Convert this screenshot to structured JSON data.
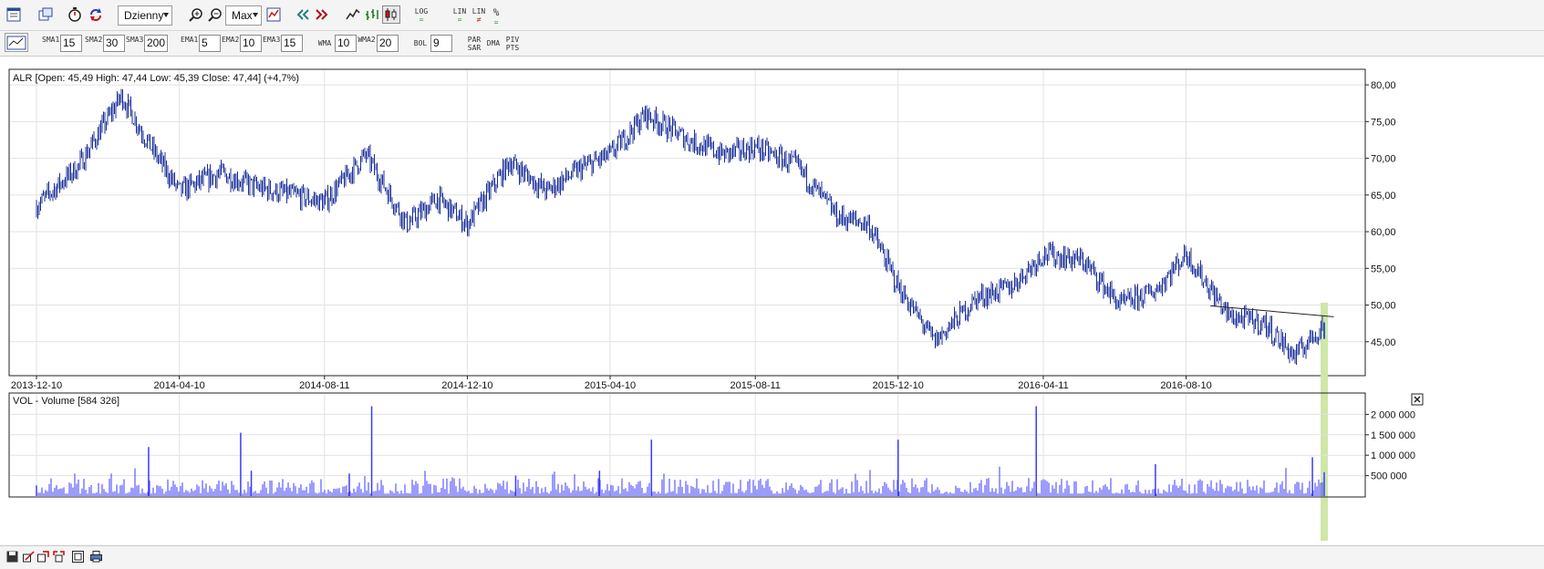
{
  "toolbar": {
    "period_label": "Dzienny",
    "zoom_label": "Max",
    "log_label": "LOG",
    "lin1_label": "LIN",
    "lin2_label": "LIN",
    "pct_label": "%"
  },
  "indicators": {
    "sma": [
      {
        "label": "SMA",
        "num": "1",
        "value": "15"
      },
      {
        "label": "SMA",
        "num": "2",
        "value": "30"
      },
      {
        "label": "SMA",
        "num": "3",
        "value": "200"
      }
    ],
    "ema": [
      {
        "label": "EMA",
        "num": "1",
        "value": "5"
      },
      {
        "label": "EMA",
        "num": "2",
        "value": "10"
      },
      {
        "label": "EMA",
        "num": "3",
        "value": "15"
      }
    ],
    "wma": [
      {
        "label": "WMA",
        "num": "",
        "value": "10"
      },
      {
        "label": "WMA",
        "num": "2",
        "value": "20"
      }
    ],
    "bol": {
      "label": "BOL",
      "value": "9"
    },
    "parsar": "PAR SAR",
    "dma": "DMA",
    "pivpts": "PIV PTS"
  },
  "colors": {
    "price_line": "#1a2f9a",
    "volume_bar": "#3a3aff",
    "trendline": "#222222",
    "highlight": "#cfe7a8",
    "grid": "#e2e2e2"
  },
  "chart_data": [
    {
      "type": "line",
      "title": "ALR [Open: 45,49  High: 47,44  Low: 45,39  Close: 47,44] (+4,7%)",
      "xlabel": "",
      "ylabel": "",
      "x_ticks": [
        "2013-12-10",
        "2014-04-10",
        "2014-08-11",
        "2014-12-10",
        "2015-04-10",
        "2015-08-11",
        "2015-12-10",
        "2016-04-11",
        "2016-08-10"
      ],
      "y_ticks": [
        "80,00",
        "75,00",
        "70,00",
        "65,00",
        "60,00",
        "55,00",
        "50,00",
        "45,00"
      ],
      "ylim": [
        40.5,
        82
      ],
      "grid": true,
      "x": [
        "2013-12-10",
        "2014-01-15",
        "2014-02-20",
        "2014-03-15",
        "2014-04-10",
        "2014-05-15",
        "2014-06-15",
        "2014-07-15",
        "2014-08-11",
        "2014-09-15",
        "2014-10-20",
        "2014-11-15",
        "2014-12-10",
        "2015-01-15",
        "2015-02-15",
        "2015-03-15",
        "2015-04-10",
        "2015-05-10",
        "2015-06-15",
        "2015-07-15",
        "2015-08-11",
        "2015-09-15",
        "2015-10-20",
        "2015-11-15",
        "2015-12-10",
        "2016-01-10",
        "2016-02-15",
        "2016-03-15",
        "2016-04-11",
        "2016-05-15",
        "2016-06-15",
        "2016-07-15",
        "2016-08-10",
        "2016-09-15",
        "2016-10-15",
        "2016-11-10",
        "2016-12-05"
      ],
      "series": [
        {
          "values": [
            63.5,
            69.0,
            78.5,
            72.0,
            65.5,
            68.0,
            66.0,
            65.0,
            64.0,
            70.5,
            61.0,
            64.5,
            61.0,
            69.5,
            65.5,
            68.5,
            70.5,
            76.0,
            72.5,
            70.5,
            71.5,
            69.0,
            62.0,
            61.0,
            52.5,
            45.0,
            51.0,
            52.5,
            57.0,
            56.0,
            50.0,
            52.0,
            57.0,
            48.5,
            47.5,
            43.0,
            47.44
          ]
        }
      ],
      "trendline": {
        "x": [
          "2016-09-15",
          "2016-12-10"
        ],
        "y": [
          49.9,
          48.4
        ]
      }
    },
    {
      "type": "bar",
      "title": "VOL - Volume [584 326]",
      "xlabel": "",
      "ylabel": "",
      "y_ticks": [
        "2 000 000",
        "1 500 000",
        "1 000 000",
        "500 000"
      ],
      "ylim": [
        0,
        2500000
      ],
      "grid": true,
      "x": [
        "2013-12-10",
        "2014-03-15",
        "2014-06-01",
        "2014-06-10",
        "2014-09-01",
        "2014-09-20",
        "2015-01-20",
        "2015-04-01",
        "2015-05-15",
        "2015-12-10",
        "2016-04-05",
        "2016-07-15",
        "2016-11-25",
        "2016-12-05"
      ],
      "series": [
        {
          "values": [
            260000,
            1200000,
            1550000,
            620000,
            550000,
            2200000,
            500000,
            620000,
            1380000,
            1380000,
            2200000,
            780000,
            950000,
            584326
          ]
        }
      ]
    }
  ]
}
